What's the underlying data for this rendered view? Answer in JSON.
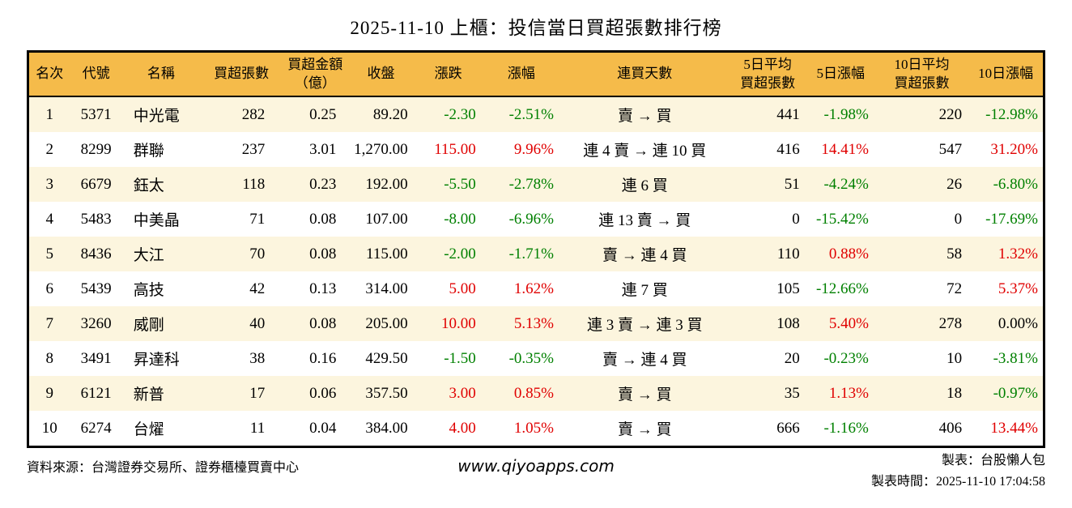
{
  "title": "2025-11-10 上櫃：投信當日買超張數排行榜",
  "chart_data": {
    "type": "table",
    "title": "2025-11-10 上櫃：投信當日買超張數排行榜",
    "columns": [
      {
        "id": "rank",
        "label": "名次"
      },
      {
        "id": "code",
        "label": "代號"
      },
      {
        "id": "name",
        "label": "名稱"
      },
      {
        "id": "net-buy-shares",
        "label": "買超張數"
      },
      {
        "id": "net-buy-amount",
        "label": "買超金額\n（億）"
      },
      {
        "id": "close",
        "label": "收盤"
      },
      {
        "id": "change",
        "label": "漲跌"
      },
      {
        "id": "change-pct",
        "label": "漲幅"
      },
      {
        "id": "consecutive-days",
        "label": "連買天數"
      },
      {
        "id": "avg5-net-buy",
        "label": "5日平均\n買超張數"
      },
      {
        "id": "pct-5d",
        "label": "5日漲幅"
      },
      {
        "id": "avg10-net-buy",
        "label": "10日平均\n買超張數"
      },
      {
        "id": "pct-10d",
        "label": "10日漲幅"
      }
    ],
    "colored_columns": [
      6,
      7,
      10,
      12
    ],
    "rows": [
      [
        "1",
        "5371",
        "中光電",
        "282",
        "0.25",
        "89.20",
        "-2.30",
        "-2.51%",
        "賣 → 買",
        "441",
        "-1.98%",
        "220",
        "-12.98%"
      ],
      [
        "2",
        "8299",
        "群聯",
        "237",
        "3.01",
        "1,270.00",
        "115.00",
        "9.96%",
        "連 4 賣 → 連 10 買",
        "416",
        "14.41%",
        "547",
        "31.20%"
      ],
      [
        "3",
        "6679",
        "鈺太",
        "118",
        "0.23",
        "192.00",
        "-5.50",
        "-2.78%",
        "連 6 買",
        "51",
        "-4.24%",
        "26",
        "-6.80%"
      ],
      [
        "4",
        "5483",
        "中美晶",
        "71",
        "0.08",
        "107.00",
        "-8.00",
        "-6.96%",
        "連 13 賣 → 買",
        "0",
        "-15.42%",
        "0",
        "-17.69%"
      ],
      [
        "5",
        "8436",
        "大江",
        "70",
        "0.08",
        "115.00",
        "-2.00",
        "-1.71%",
        "賣 → 連 4 買",
        "110",
        "0.88%",
        "58",
        "1.32%"
      ],
      [
        "6",
        "5439",
        "高技",
        "42",
        "0.13",
        "314.00",
        "5.00",
        "1.62%",
        "連 7 買",
        "105",
        "-12.66%",
        "72",
        "5.37%"
      ],
      [
        "7",
        "3260",
        "威剛",
        "40",
        "0.08",
        "205.00",
        "10.00",
        "5.13%",
        "連 3 賣 → 連 3 買",
        "108",
        "5.40%",
        "278",
        "0.00%"
      ],
      [
        "8",
        "3491",
        "昇達科",
        "38",
        "0.16",
        "429.50",
        "-1.50",
        "-0.35%",
        "賣 → 連 4 買",
        "20",
        "-0.23%",
        "10",
        "-3.81%"
      ],
      [
        "9",
        "6121",
        "新普",
        "17",
        "0.06",
        "357.50",
        "3.00",
        "0.85%",
        "賣 → 買",
        "35",
        "1.13%",
        "18",
        "-0.97%"
      ],
      [
        "10",
        "6274",
        "台燿",
        "11",
        "0.04",
        "384.00",
        "4.00",
        "1.05%",
        "賣 → 買",
        "666",
        "-1.16%",
        "406",
        "13.44%"
      ]
    ]
  },
  "footer": {
    "source": "資料來源：台灣證券交易所、證券櫃檯買賣中心",
    "website": "www.qiyoapps.com",
    "creator": "製表：台股懶人包",
    "created_time": "製表時間：2025-11-10 17:04:58"
  },
  "colors": {
    "up": "#e00000",
    "down": "#008000",
    "flat": "#000000",
    "header_bg": "#f5bb4a",
    "row_stripe_bg": "#fcf5de",
    "border": "#000000"
  }
}
